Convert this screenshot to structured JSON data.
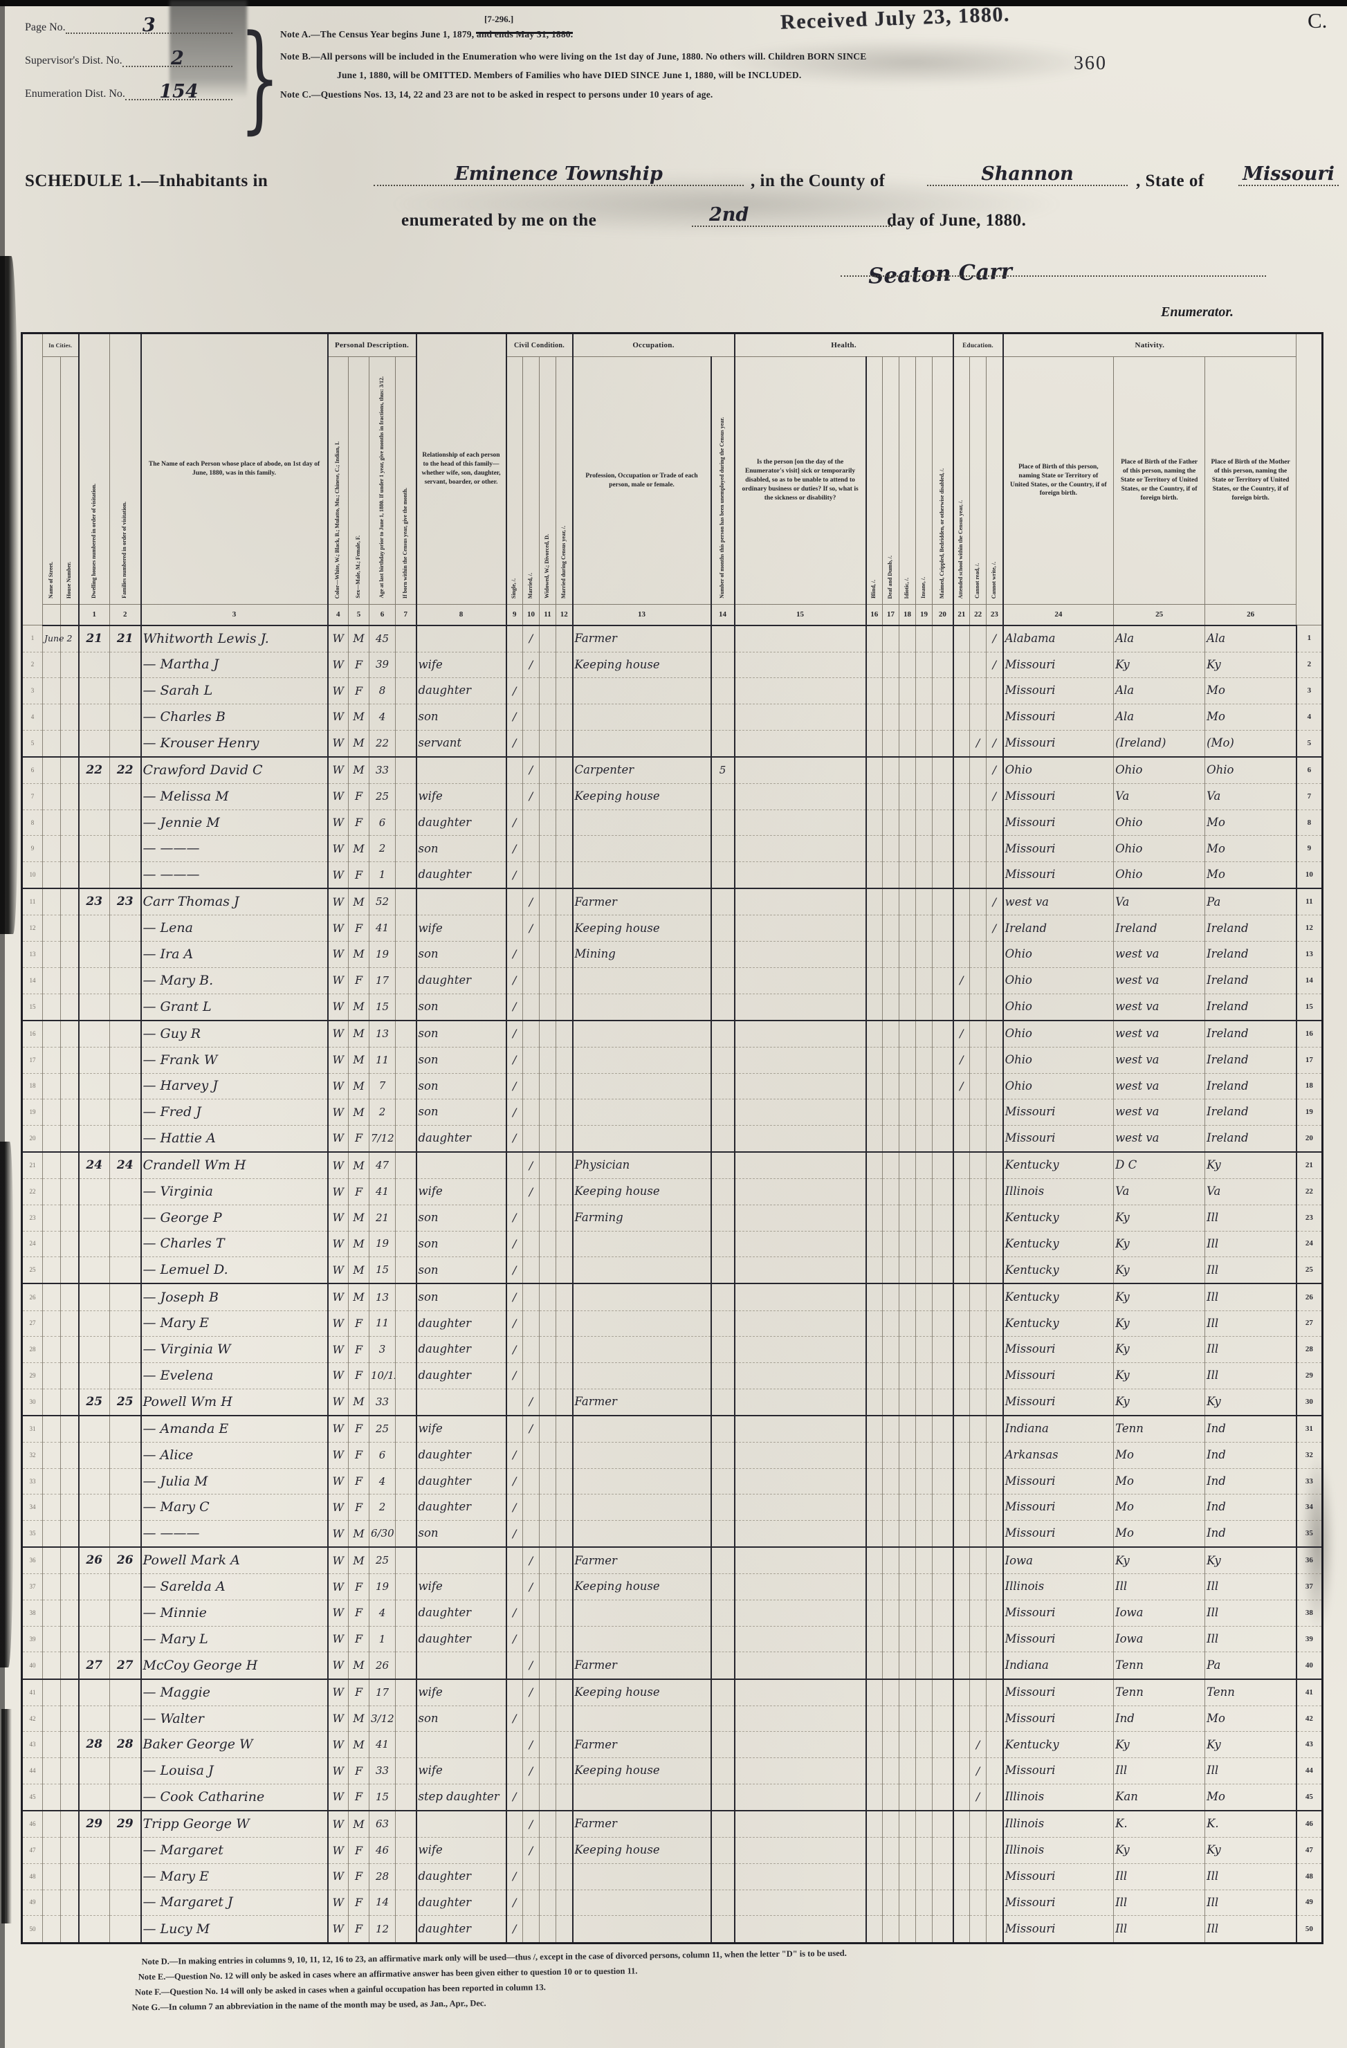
{
  "stamps": {
    "form_code": "[7-296.]",
    "received": "Received July 23, 1880.",
    "corner_letter": "C.",
    "page_stamp": "360"
  },
  "header": {
    "page_no_label": "Page No.",
    "page_no": "3",
    "supervisor_label": "Supervisor's Dist. No.",
    "supervisor_no": "2",
    "enumeration_label": "Enumeration Dist. No.",
    "enumeration_no": "154",
    "note_a": "Note A.—The Census Year begins June 1, 1879, and ends May 31, 1880.",
    "note_b1": "Note B.—All persons will be included in the Enumeration who were living on the 1st day of June, 1880.  No others will.  Children BORN SINCE",
    "note_b2": "June 1, 1880, will be OMITTED.  Members of Families who have DIED SINCE June 1, 1880, will be INCLUDED.",
    "note_c": "Note C.—Questions Nos. 13, 14, 22 and 23 are not to be asked in respect to persons under 10 years of age.",
    "schedule_prefix": "SCHEDULE 1.—Inhabitants in",
    "township": "Eminence Township",
    "county_prefix": ", in the County of",
    "county": "Shannon",
    "state_prefix": ", State of",
    "state": "Missouri",
    "enum_line_prefix": "enumerated by me on the",
    "enum_day": "2nd",
    "enum_line_suffix": "day of June, 1880.",
    "enumerator_signature": "Seaton Carr",
    "enumerator_label": "Enumerator."
  },
  "table": {
    "groups": {
      "in_cities": "In Cities.",
      "personal": "Personal Description.",
      "civil": "Civil Condition.",
      "occupation": "Occupation.",
      "health": "Health.",
      "education": "Education.",
      "nativity": "Nativity."
    },
    "cols": {
      "street": "Name of Street.",
      "house": "House Number.",
      "c1": "Dwelling houses numbered in order of visitation.",
      "c2": "Families numbered in order of visitation.",
      "c3": "The Name of each Person whose place of abode, on 1st day of June, 1880, was in this family.",
      "c4": "Color—White, W.; Black, B.; Mulatto, Mu.; Chinese, C.; Indian, I.",
      "c5": "Sex—Male, M.; Female, F.",
      "c6": "Age at last birthday prior to June 1, 1880.  If under 1 year, give months in fractions, thus: 3/12.",
      "c7": "If born within the Census year, give the month.",
      "c8": "Relationship of each person to the head of this family—whether wife, son, daughter, servant, boarder, or other.",
      "c9": "Single, /.",
      "c10": "Married, /.",
      "c11": "Widowed, W.; Divorced, D.",
      "c12": "Married during Census year, /.",
      "c13": "Profession, Occupation or Trade of each person, male or female.",
      "c14": "Number of months this person has been unemployed during the Census year.",
      "c15": "Is the person [on the day of the Enumerator's visit] sick or temporarily disabled, so as to be unable to attend to ordinary business or duties?  If so, what is the sickness or disability?",
      "c16": "Blind, /.",
      "c17": "Deaf and Dumb, /.",
      "c18": "Idiotic, /.",
      "c19": "Insane, /.",
      "c20": "Maimed, Crippled, Bedridden, or otherwise disabled, /.",
      "c21": "Attended school within the Census year, /.",
      "c22": "Cannot read, /.",
      "c23": "Cannot write, /.",
      "c24": "Place of Birth of this person, naming State or Territory of United States, or the Country, if of foreign birth.",
      "c25": "Place of Birth of the Father of this person, naming the State or Territory of United States, or the Country, if of foreign birth.",
      "c26": "Place of Birth of the Mother of this person, naming the State or Territory of United States, or the Country, if of foreign birth."
    },
    "col_numbers": [
      "1",
      "2",
      "3",
      "4",
      "5",
      "6",
      "7",
      "8",
      "9",
      "10",
      "11",
      "12",
      "13",
      "14",
      "15",
      "16",
      "17",
      "18",
      "19",
      "20",
      "21",
      "22",
      "23",
      "24",
      "25",
      "26"
    ],
    "rows": [
      {
        "n": 1,
        "st": "June 2",
        "dw": "21",
        "fam": "21",
        "name": "Whitworth Lewis J.",
        "c": "W",
        "s": "M",
        "a": "45",
        "mr": "/",
        "occ": "Farmer",
        "cw": "/",
        "pb": "Alabama",
        "pf": "Ala",
        "pm": "Ala"
      },
      {
        "n": 2,
        "name": "— Martha J",
        "c": "W",
        "s": "F",
        "a": "39",
        "rel": "wife",
        "mr": "/",
        "occ": "Keeping house",
        "cw": "/",
        "pb": "Missouri",
        "pf": "Ky",
        "pm": "Ky"
      },
      {
        "n": 3,
        "name": "— Sarah L",
        "c": "W",
        "s": "F",
        "a": "8",
        "rel": "daughter",
        "sg": "/",
        "pb": "Missouri",
        "pf": "Ala",
        "pm": "Mo"
      },
      {
        "n": 4,
        "name": "— Charles B",
        "c": "W",
        "s": "M",
        "a": "4",
        "rel": "son",
        "sg": "/",
        "pb": "Missouri",
        "pf": "Ala",
        "pm": "Mo"
      },
      {
        "n": 5,
        "name": "— Krouser Henry",
        "c": "W",
        "s": "M",
        "a": "22",
        "rel": "servant",
        "sg": "/",
        "cr": "/",
        "cw": "/",
        "pb": "Missouri",
        "pf": "(Ireland)",
        "pm": "(Mo)"
      },
      {
        "n": 6,
        "dw": "22",
        "fam": "22",
        "name": "Crawford David C",
        "c": "W",
        "s": "M",
        "a": "33",
        "mr": "/",
        "occ": "Carpenter",
        "un": "5",
        "cw": "/",
        "pb": "Ohio",
        "pf": "Ohio",
        "pm": "Ohio"
      },
      {
        "n": 7,
        "name": "— Melissa M",
        "c": "W",
        "s": "F",
        "a": "25",
        "rel": "wife",
        "mr": "/",
        "occ": "Keeping house",
        "cw": "/",
        "pb": "Missouri",
        "pf": "Va",
        "pm": "Va"
      },
      {
        "n": 8,
        "name": "— Jennie M",
        "c": "W",
        "s": "F",
        "a": "6",
        "rel": "daughter",
        "sg": "/",
        "pb": "Missouri",
        "pf": "Ohio",
        "pm": "Mo"
      },
      {
        "n": 9,
        "name": "— ———",
        "c": "W",
        "s": "M",
        "a": "2",
        "rel": "son",
        "sg": "/",
        "pb": "Missouri",
        "pf": "Ohio",
        "pm": "Mo"
      },
      {
        "n": 10,
        "name": "— ———",
        "c": "W",
        "s": "F",
        "a": "1",
        "rel": "daughter",
        "sg": "/",
        "pb": "Missouri",
        "pf": "Ohio",
        "pm": "Mo"
      },
      {
        "n": 11,
        "dw": "23",
        "fam": "23",
        "name": "Carr Thomas J",
        "c": "W",
        "s": "M",
        "a": "52",
        "mr": "/",
        "occ": "Farmer",
        "cw": "/",
        "pb": "west va",
        "pf": "Va",
        "pm": "Pa"
      },
      {
        "n": 12,
        "name": "— Lena",
        "c": "W",
        "s": "F",
        "a": "41",
        "rel": "wife",
        "mr": "/",
        "occ": "Keeping house",
        "cw": "/",
        "pb": "Ireland",
        "pf": "Ireland",
        "pm": "Ireland"
      },
      {
        "n": 13,
        "name": "— Ira A",
        "c": "W",
        "s": "M",
        "a": "19",
        "rel": "son",
        "sg": "/",
        "occ": "Mining",
        "pb": "Ohio",
        "pf": "west va",
        "pm": "Ireland"
      },
      {
        "n": 14,
        "name": "— Mary B.",
        "c": "W",
        "s": "F",
        "a": "17",
        "rel": "daughter",
        "sg": "/",
        "sc": "/",
        "pb": "Ohio",
        "pf": "west va",
        "pm": "Ireland"
      },
      {
        "n": 15,
        "name": "— Grant L",
        "c": "W",
        "s": "M",
        "a": "15",
        "rel": "son",
        "sg": "/",
        "pb": "Ohio",
        "pf": "west va",
        "pm": "Ireland"
      },
      {
        "n": 16,
        "name": "— Guy R",
        "c": "W",
        "s": "M",
        "a": "13",
        "rel": "son",
        "sg": "/",
        "sc": "/",
        "pb": "Ohio",
        "pf": "west va",
        "pm": "Ireland"
      },
      {
        "n": 17,
        "name": "— Frank W",
        "c": "W",
        "s": "M",
        "a": "11",
        "rel": "son",
        "sg": "/",
        "sc": "/",
        "pb": "Ohio",
        "pf": "west va",
        "pm": "Ireland"
      },
      {
        "n": 18,
        "name": "— Harvey J",
        "c": "W",
        "s": "M",
        "a": "7",
        "rel": "son",
        "sg": "/",
        "sc": "/",
        "pb": "Ohio",
        "pf": "west va",
        "pm": "Ireland"
      },
      {
        "n": 19,
        "name": "— Fred J",
        "c": "W",
        "s": "M",
        "a": "2",
        "rel": "son",
        "sg": "/",
        "pb": "Missouri",
        "pf": "west va",
        "pm": "Ireland"
      },
      {
        "n": 20,
        "name": "— Hattie A",
        "c": "W",
        "s": "F",
        "a": "7/12",
        "rel": "daughter",
        "sg": "/",
        "pb": "Missouri",
        "pf": "west va",
        "pm": "Ireland"
      },
      {
        "n": 21,
        "dw": "24",
        "fam": "24",
        "name": "Crandell Wm H",
        "c": "W",
        "s": "M",
        "a": "47",
        "mr": "/",
        "occ": "Physician",
        "pb": "Kentucky",
        "pf": "D C",
        "pm": "Ky"
      },
      {
        "n": 22,
        "name": "— Virginia",
        "c": "W",
        "s": "F",
        "a": "41",
        "rel": "wife",
        "mr": "/",
        "occ": "Keeping house",
        "pb": "Illinois",
        "pf": "Va",
        "pm": "Va"
      },
      {
        "n": 23,
        "name": "— George P",
        "c": "W",
        "s": "M",
        "a": "21",
        "rel": "son",
        "sg": "/",
        "occ": "Farming",
        "pb": "Kentucky",
        "pf": "Ky",
        "pm": "Ill"
      },
      {
        "n": 24,
        "name": "— Charles T",
        "c": "W",
        "s": "M",
        "a": "19",
        "rel": "son",
        "sg": "/",
        "pb": "Kentucky",
        "pf": "Ky",
        "pm": "Ill"
      },
      {
        "n": 25,
        "name": "— Lemuel D.",
        "c": "W",
        "s": "M",
        "a": "15",
        "rel": "son",
        "sg": "/",
        "pb": "Kentucky",
        "pf": "Ky",
        "pm": "Ill"
      },
      {
        "n": 26,
        "name": "— Joseph B",
        "c": "W",
        "s": "M",
        "a": "13",
        "rel": "son",
        "sg": "/",
        "pb": "Kentucky",
        "pf": "Ky",
        "pm": "Ill"
      },
      {
        "n": 27,
        "name": "— Mary E",
        "c": "W",
        "s": "F",
        "a": "11",
        "rel": "daughter",
        "sg": "/",
        "pb": "Kentucky",
        "pf": "Ky",
        "pm": "Ill"
      },
      {
        "n": 28,
        "name": "— Virginia W",
        "c": "W",
        "s": "F",
        "a": "3",
        "rel": "daughter",
        "sg": "/",
        "pb": "Missouri",
        "pf": "Ky",
        "pm": "Ill"
      },
      {
        "n": 29,
        "name": "— Evelena",
        "c": "W",
        "s": "F",
        "a": "10/12",
        "rel": "daughter",
        "sg": "/",
        "pb": "Missouri",
        "pf": "Ky",
        "pm": "Ill"
      },
      {
        "n": 30,
        "dw": "25",
        "fam": "25",
        "name": "Powell Wm H",
        "c": "W",
        "s": "M",
        "a": "33",
        "mr": "/",
        "occ": "Farmer",
        "pb": "Missouri",
        "pf": "Ky",
        "pm": "Ky"
      },
      {
        "n": 31,
        "name": "— Amanda E",
        "c": "W",
        "s": "F",
        "a": "25",
        "rel": "wife",
        "mr": "/",
        "pb": "Indiana",
        "pf": "Tenn",
        "pm": "Ind"
      },
      {
        "n": 32,
        "name": "— Alice",
        "c": "W",
        "s": "F",
        "a": "6",
        "rel": "daughter",
        "sg": "/",
        "pb": "Arkansas",
        "pf": "Mo",
        "pm": "Ind"
      },
      {
        "n": 33,
        "name": "— Julia M",
        "c": "W",
        "s": "F",
        "a": "4",
        "rel": "daughter",
        "sg": "/",
        "pb": "Missouri",
        "pf": "Mo",
        "pm": "Ind"
      },
      {
        "n": 34,
        "name": "— Mary C",
        "c": "W",
        "s": "F",
        "a": "2",
        "rel": "daughter",
        "sg": "/",
        "pb": "Missouri",
        "pf": "Mo",
        "pm": "Ind"
      },
      {
        "n": 35,
        "name": "— ———",
        "c": "W",
        "s": "M",
        "a": "6/30",
        "rel": "son",
        "sg": "/",
        "pb": "Missouri",
        "pf": "Mo",
        "pm": "Ind"
      },
      {
        "n": 36,
        "dw": "26",
        "fam": "26",
        "name": "Powell Mark A",
        "c": "W",
        "s": "M",
        "a": "25",
        "mr": "/",
        "occ": "Farmer",
        "pb": "Iowa",
        "pf": "Ky",
        "pm": "Ky"
      },
      {
        "n": 37,
        "name": "— Sarelda A",
        "c": "W",
        "s": "F",
        "a": "19",
        "rel": "wife",
        "mr": "/",
        "occ": "Keeping house",
        "pb": "Illinois",
        "pf": "Ill",
        "pm": "Ill"
      },
      {
        "n": 38,
        "name": "— Minnie",
        "c": "W",
        "s": "F",
        "a": "4",
        "rel": "daughter",
        "sg": "/",
        "pb": "Missouri",
        "pf": "Iowa",
        "pm": "Ill"
      },
      {
        "n": 39,
        "name": "— Mary L",
        "c": "W",
        "s": "F",
        "a": "1",
        "rel": "daughter",
        "sg": "/",
        "pb": "Missouri",
        "pf": "Iowa",
        "pm": "Ill"
      },
      {
        "n": 40,
        "dw": "27",
        "fam": "27",
        "name": "McCoy George H",
        "c": "W",
        "s": "M",
        "a": "26",
        "mr": "/",
        "occ": "Farmer",
        "pb": "Indiana",
        "pf": "Tenn",
        "pm": "Pa"
      },
      {
        "n": 41,
        "name": "— Maggie",
        "c": "W",
        "s": "F",
        "a": "17",
        "rel": "wife",
        "mr": "/",
        "occ": "Keeping house",
        "pb": "Missouri",
        "pf": "Tenn",
        "pm": "Tenn"
      },
      {
        "n": 42,
        "name": "— Walter",
        "c": "W",
        "s": "M",
        "a": "3/12",
        "rel": "son",
        "sg": "/",
        "pb": "Missouri",
        "pf": "Ind",
        "pm": "Mo"
      },
      {
        "n": 43,
        "dw": "28",
        "fam": "28",
        "name": "Baker George W",
        "c": "W",
        "s": "M",
        "a": "41",
        "mr": "/",
        "occ": "Farmer",
        "cr": "/",
        "pb": "Kentucky",
        "pf": "Ky",
        "pm": "Ky"
      },
      {
        "n": 44,
        "name": "— Louisa J",
        "c": "W",
        "s": "F",
        "a": "33",
        "rel": "wife",
        "mr": "/",
        "occ": "Keeping house",
        "cr": "/",
        "pb": "Missouri",
        "pf": "Ill",
        "pm": "Ill"
      },
      {
        "n": 45,
        "name": "— Cook Catharine",
        "c": "W",
        "s": "F",
        "a": "15",
        "rel": "step daughter",
        "sg": "/",
        "cr": "/",
        "pb": "Illinois",
        "pf": "Kan",
        "pm": "Mo"
      },
      {
        "n": 46,
        "dw": "29",
        "fam": "29",
        "name": "Tripp George W",
        "c": "W",
        "s": "M",
        "a": "63",
        "mr": "/",
        "occ": "Farmer",
        "pb": "Illinois",
        "pf": "K.",
        "pm": "K."
      },
      {
        "n": 47,
        "name": "— Margaret",
        "c": "W",
        "s": "F",
        "a": "46",
        "rel": "wife",
        "mr": "/",
        "occ": "Keeping house",
        "pb": "Illinois",
        "pf": "Ky",
        "pm": "Ky"
      },
      {
        "n": 48,
        "name": "— Mary E",
        "c": "W",
        "s": "F",
        "a": "28",
        "rel": "daughter",
        "sg": "/",
        "pb": "Missouri",
        "pf": "Ill",
        "pm": "Ill"
      },
      {
        "n": 49,
        "name": "— Margaret J",
        "c": "W",
        "s": "F",
        "a": "14",
        "rel": "daughter",
        "sg": "/",
        "pb": "Missouri",
        "pf": "Ill",
        "pm": "Ill"
      },
      {
        "n": 50,
        "name": "— Lucy M",
        "c": "W",
        "s": "F",
        "a": "12",
        "rel": "daughter",
        "sg": "/",
        "pb": "Missouri",
        "pf": "Ill",
        "pm": "Ill"
      }
    ]
  },
  "footnotes": {
    "d": "Note D.—In making entries in columns 9, 10, 11, 12, 16 to 23, an affirmative mark only will be used—thus /, except in the case of divorced persons, column 11, when the letter \"D\" is to be used.",
    "e": "Note E.—Question No. 12 will only be asked in cases where an affirmative answer has been given either to question 10 or to question 11.",
    "f": "Note F.—Question No. 14 will only be asked in cases when a gainful occupation has been reported in column 13.",
    "g": "Note G.—In column 7 an abbreviation in the name of the month may be used, as Jan., Apr., Dec."
  }
}
